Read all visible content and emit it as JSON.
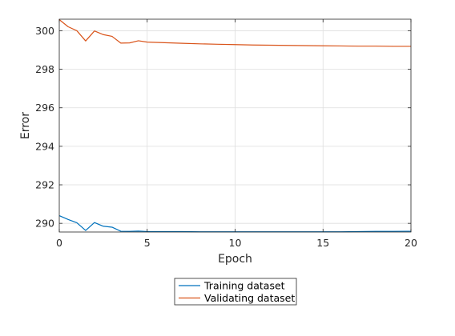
{
  "chart_data": {
    "type": "line",
    "xlabel": "Epoch",
    "ylabel": "Error",
    "xlim": [
      0,
      20
    ],
    "ylim": [
      289.55,
      300.6
    ],
    "xticks": [
      0,
      5,
      10,
      15,
      20
    ],
    "yticks": [
      290,
      292,
      294,
      296,
      298,
      300
    ],
    "grid": true,
    "legend_position": "bottom-outside",
    "series": [
      {
        "name": "Training dataset",
        "color": "#0072BD",
        "x": [
          0,
          0.5,
          1,
          1.5,
          2,
          2.5,
          3,
          3.5,
          4,
          4.5,
          5,
          6,
          7,
          8,
          9,
          10,
          11,
          12,
          13,
          14,
          15,
          16,
          17,
          18,
          19,
          20
        ],
        "y": [
          290.4,
          290.2,
          290.03,
          289.63,
          290.04,
          289.85,
          289.8,
          289.59,
          289.58,
          289.6,
          289.57,
          289.57,
          289.57,
          289.56,
          289.56,
          289.56,
          289.56,
          289.56,
          289.56,
          289.56,
          289.56,
          289.56,
          289.57,
          289.58,
          289.58,
          289.59
        ]
      },
      {
        "name": "Validating dataset",
        "color": "#D95319",
        "x": [
          0,
          0.5,
          1,
          1.5,
          2,
          2.5,
          3,
          3.5,
          4,
          4.5,
          5,
          6,
          7,
          8,
          9,
          10,
          11,
          12,
          13,
          14,
          15,
          16,
          17,
          18,
          19,
          20
        ],
        "y": [
          300.58,
          300.21,
          300.0,
          299.47,
          299.99,
          299.8,
          299.71,
          299.36,
          299.37,
          299.48,
          299.41,
          299.38,
          299.35,
          299.32,
          299.3,
          299.28,
          299.26,
          299.25,
          299.24,
          299.23,
          299.22,
          299.21,
          299.2,
          299.2,
          299.19,
          299.19
        ]
      }
    ]
  }
}
